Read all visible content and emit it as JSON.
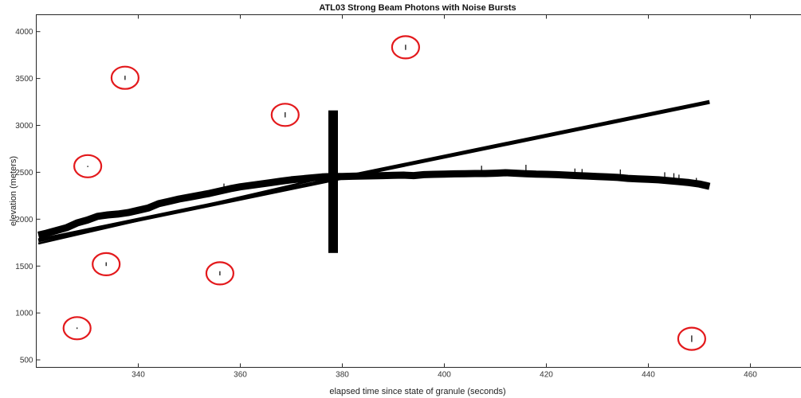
{
  "chart_data": {
    "type": "scatter",
    "title": "ATL03 Strong Beam Photons with Noise Bursts",
    "xlabel": "elapsed time since state of granule (seconds)",
    "ylabel": "elevation (meters)",
    "xlim": [
      320,
      470
    ],
    "ylim": [
      420,
      4180
    ],
    "x_ticks": [
      340,
      360,
      380,
      400,
      420,
      440,
      460
    ],
    "y_ticks": [
      500,
      1000,
      1500,
      2000,
      2500,
      3000,
      3500,
      4000
    ],
    "grid": false,
    "series": [
      {
        "role": "surface-track",
        "points": [
          [
            320.4,
            1830
          ],
          [
            322,
            1850
          ],
          [
            324,
            1880
          ],
          [
            326,
            1910
          ],
          [
            328,
            1960
          ],
          [
            330,
            1990
          ],
          [
            332,
            2030
          ],
          [
            334,
            2045
          ],
          [
            336,
            2055
          ],
          [
            338,
            2070
          ],
          [
            340,
            2095
          ],
          [
            342,
            2120
          ],
          [
            344,
            2165
          ],
          [
            346,
            2190
          ],
          [
            348,
            2215
          ],
          [
            350,
            2235
          ],
          [
            352,
            2255
          ],
          [
            354,
            2275
          ],
          [
            356,
            2300
          ],
          [
            358,
            2325
          ],
          [
            360,
            2345
          ],
          [
            362,
            2360
          ],
          [
            364,
            2375
          ],
          [
            366,
            2390
          ],
          [
            368,
            2405
          ],
          [
            370,
            2420
          ],
          [
            372,
            2430
          ],
          [
            374,
            2440
          ],
          [
            376,
            2450
          ],
          [
            378,
            2455
          ],
          [
            380,
            2455
          ],
          [
            382,
            2458
          ],
          [
            384,
            2460
          ],
          [
            386,
            2462
          ],
          [
            388,
            2465
          ],
          [
            390,
            2468
          ],
          [
            392,
            2470
          ],
          [
            394,
            2465
          ],
          [
            396,
            2475
          ],
          [
            398,
            2478
          ],
          [
            400,
            2480
          ],
          [
            402,
            2483
          ],
          [
            404,
            2485
          ],
          [
            406,
            2487
          ],
          [
            408,
            2487
          ],
          [
            410,
            2490
          ],
          [
            412,
            2495
          ],
          [
            414,
            2490
          ],
          [
            416,
            2485
          ],
          [
            418,
            2480
          ],
          [
            420,
            2478
          ],
          [
            422,
            2475
          ],
          [
            424,
            2470
          ],
          [
            426,
            2465
          ],
          [
            428,
            2460
          ],
          [
            430,
            2455
          ],
          [
            432,
            2450
          ],
          [
            434,
            2445
          ],
          [
            436,
            2435
          ],
          [
            438,
            2430
          ],
          [
            440,
            2425
          ],
          [
            442,
            2420
          ],
          [
            444,
            2410
          ],
          [
            446,
            2400
          ],
          [
            448,
            2390
          ],
          [
            450,
            2375
          ],
          [
            452,
            2350
          ]
        ]
      },
      {
        "role": "linear-track-upper",
        "points": [
          [
            320.4,
            1775
          ],
          [
            452,
            3250
          ]
        ]
      },
      {
        "role": "linear-track-lower",
        "points": [
          [
            320.4,
            1740
          ],
          [
            378,
            2460
          ]
        ]
      }
    ],
    "vertical_burst": {
      "x": 378.2,
      "y_range": [
        1640,
        3160
      ]
    },
    "small_spikes": [
      {
        "x": 356.8,
        "y_range": [
          2320,
          2380
        ]
      },
      {
        "x": 407.3,
        "y_range": [
          2480,
          2570
        ]
      },
      {
        "x": 416.0,
        "y_range": [
          2490,
          2580
        ]
      },
      {
        "x": 425.6,
        "y_range": [
          2470,
          2540
        ]
      },
      {
        "x": 427.0,
        "y_range": [
          2465,
          2535
        ]
      },
      {
        "x": 434.5,
        "y_range": [
          2445,
          2530
        ]
      },
      {
        "x": 443.2,
        "y_range": [
          2410,
          2500
        ]
      },
      {
        "x": 445.0,
        "y_range": [
          2405,
          2490
        ]
      },
      {
        "x": 446.0,
        "y_range": [
          2400,
          2475
        ]
      },
      {
        "x": 449.4,
        "y_range": [
          2380,
          2440
        ]
      }
    ],
    "noise_bursts": [
      {
        "x": 328.0,
        "y_range": [
          830,
          845
        ]
      },
      {
        "x": 330.1,
        "y_range": [
          2562,
          2568
        ]
      },
      {
        "x": 333.7,
        "y_range": [
          1500,
          1540
        ]
      },
      {
        "x": 337.4,
        "y_range": [
          3485,
          3530
        ]
      },
      {
        "x": 356.0,
        "y_range": [
          1400,
          1445
        ]
      },
      {
        "x": 368.8,
        "y_range": [
          3085,
          3140
        ]
      },
      {
        "x": 392.4,
        "y_range": [
          3805,
          3860
        ]
      },
      {
        "x": 448.5,
        "y_range": [
          690,
          760
        ]
      }
    ],
    "colors": {
      "data": "#000000",
      "highlight_circle": "#e3191c",
      "axes": "#262626",
      "background": "#ffffff"
    }
  }
}
